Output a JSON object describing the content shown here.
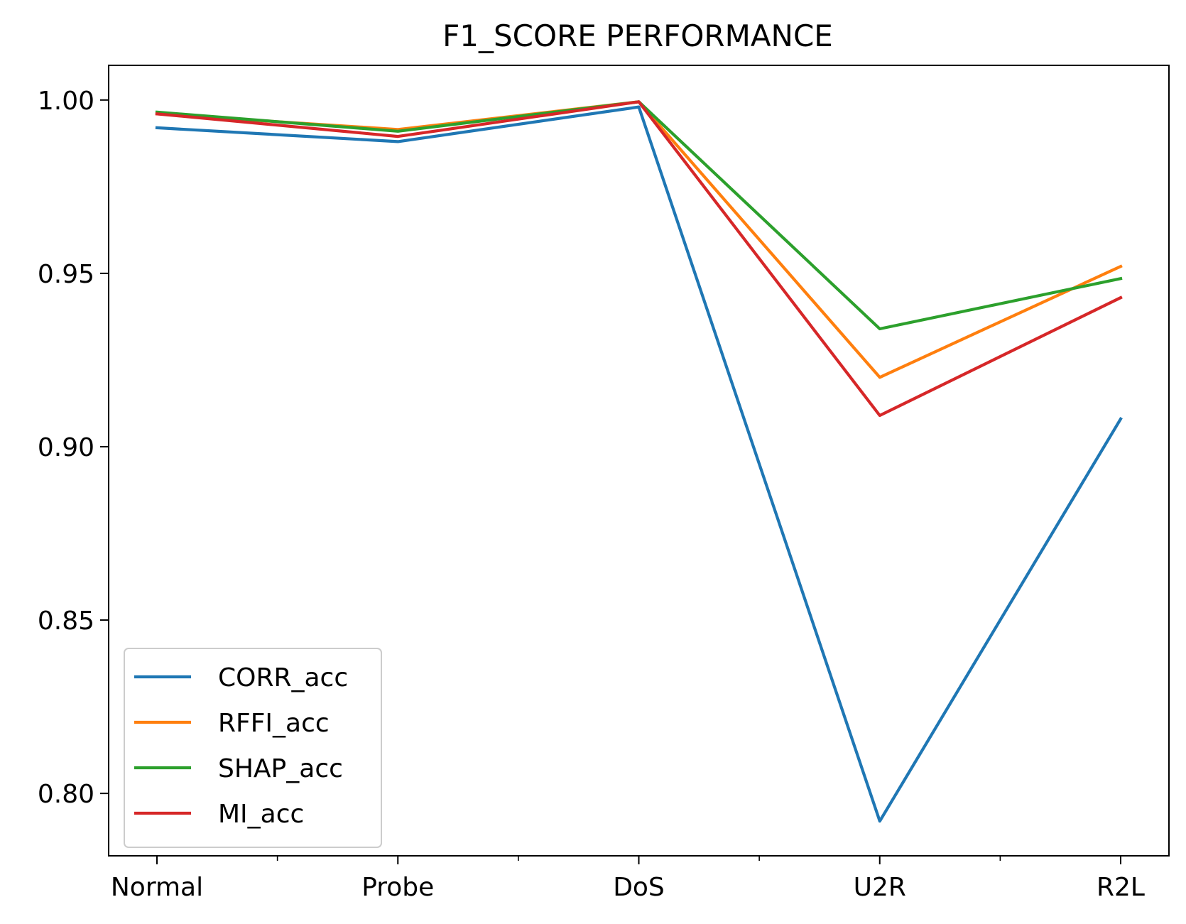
{
  "chart_data": {
    "type": "line",
    "title": "F1_SCORE PERFORMANCE",
    "xlabel": "",
    "ylabel": "",
    "categories": [
      "Normal",
      "Probe",
      "DoS",
      "U2R",
      "R2L"
    ],
    "minor_ticks": true,
    "ylim": [
      0.782,
      1.01
    ],
    "yticks": [
      0.8,
      0.85,
      0.9,
      0.95,
      1.0
    ],
    "ytick_labels": [
      "0.80",
      "0.85",
      "0.90",
      "0.95",
      "1.00"
    ],
    "grid": false,
    "legend": {
      "position": "lower-left"
    },
    "series": [
      {
        "name": "CORR_acc",
        "color": "#1f77b4",
        "values": [
          0.992,
          0.988,
          0.998,
          0.792,
          0.908
        ]
      },
      {
        "name": "RFFI_acc",
        "color": "#ff7f0e",
        "values": [
          0.996,
          0.9915,
          0.9995,
          0.92,
          0.952
        ]
      },
      {
        "name": "SHAP_acc",
        "color": "#2ca02c",
        "values": [
          0.9965,
          0.991,
          0.9995,
          0.934,
          0.9485
        ]
      },
      {
        "name": "MI_acc",
        "color": "#d62728",
        "values": [
          0.996,
          0.9895,
          0.9995,
          0.909,
          0.943
        ]
      }
    ]
  }
}
